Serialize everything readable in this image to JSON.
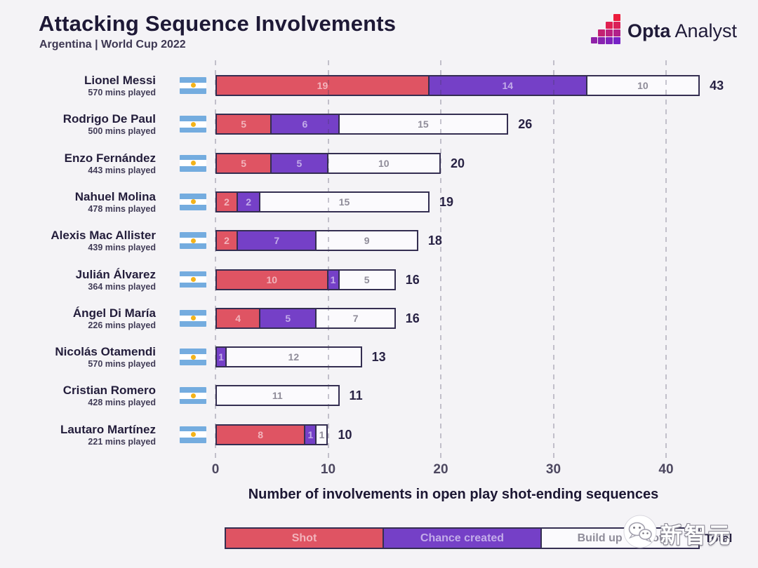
{
  "header": {
    "title": "Attacking Sequence Involvements",
    "subtitle": "Argentina | World Cup 2022",
    "logo_bold": "Opta",
    "logo_regular": "Analyst"
  },
  "watermark": {
    "text": "新智元"
  },
  "colors": {
    "background": "#f4f3f6",
    "ink": "#1e1936",
    "shot": "#df5463",
    "chance": "#7540c7",
    "buildup_fill": "#fbfafd",
    "bar_border": "#342e51",
    "value_on_shot": "#f2b4bc",
    "value_on_chance": "#c3ace9",
    "value_on_buildup": "#8f8c99",
    "grid": "#c9c7d0",
    "flag_blue": "#74acdf",
    "flag_white": "#ffffff",
    "flag_sun": "#f3b31a"
  },
  "chart_data": {
    "type": "bar",
    "orientation": "horizontal",
    "stacked": true,
    "title": "Attacking Sequence Involvements",
    "subtitle": "Argentina | World Cup 2022",
    "xlabel": "Number of involvements in open play shot-ending sequences",
    "x_ticks": [
      0,
      10,
      20,
      30,
      40
    ],
    "xlim": [
      0,
      43
    ],
    "grid": "dashed-vertical",
    "legend_position": "bottom",
    "series_keys": [
      "shot",
      "chance",
      "buildup"
    ],
    "legend": [
      {
        "key": "shot",
        "label": "Shot"
      },
      {
        "key": "chance",
        "label": "Chance created"
      },
      {
        "key": "buildup",
        "label": "Build up to shot"
      }
    ],
    "total_label": "Total",
    "players": [
      {
        "name": "Lionel Messi",
        "mins": "570 mins played",
        "shot": 19,
        "chance": 14,
        "buildup": 10,
        "total": 43
      },
      {
        "name": "Rodrigo De Paul",
        "mins": "500 mins played",
        "shot": 5,
        "chance": 6,
        "buildup": 15,
        "total": 26
      },
      {
        "name": "Enzo Fernández",
        "mins": "443 mins played",
        "shot": 5,
        "chance": 5,
        "buildup": 10,
        "total": 20
      },
      {
        "name": "Nahuel Molina",
        "mins": "478 mins played",
        "shot": 2,
        "chance": 2,
        "buildup": 15,
        "total": 19
      },
      {
        "name": "Alexis Mac Allister",
        "mins": "439 mins played",
        "shot": 2,
        "chance": 7,
        "buildup": 9,
        "total": 18
      },
      {
        "name": "Julián Álvarez",
        "mins": "364 mins played",
        "shot": 10,
        "chance": 1,
        "buildup": 5,
        "total": 16
      },
      {
        "name": "Ángel Di María",
        "mins": "226 mins played",
        "shot": 4,
        "chance": 5,
        "buildup": 7,
        "total": 16
      },
      {
        "name": "Nicolás Otamendi",
        "mins": "570 mins played",
        "shot": 0,
        "chance": 1,
        "buildup": 12,
        "total": 13
      },
      {
        "name": "Cristian Romero",
        "mins": "428 mins played",
        "shot": 0,
        "chance": 0,
        "buildup": 11,
        "total": 11
      },
      {
        "name": "Lautaro Martínez",
        "mins": "221 mins played",
        "shot": 8,
        "chance": 1,
        "buildup": 1,
        "total": 10
      }
    ]
  }
}
